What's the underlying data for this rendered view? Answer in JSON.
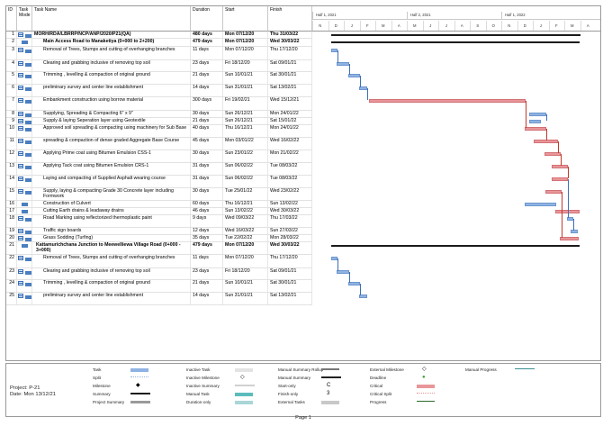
{
  "columns": {
    "id": "ID",
    "task_mode": "Task Mode",
    "task_name": "Task Name",
    "duration": "Duration",
    "start": "Start",
    "finish": "Finish"
  },
  "timeline": {
    "halves": [
      "Half 1, 2021",
      "Half 2, 2021",
      "Half 1, 2022"
    ],
    "months": [
      "N",
      "D",
      "J",
      "F",
      "M",
      "A",
      "M",
      "J",
      "J",
      "A",
      "S",
      "O",
      "N",
      "D",
      "J",
      "F",
      "M",
      "A"
    ]
  },
  "tasks": [
    {
      "id": "1",
      "name": "MORH/RDA/LBRRP/NCP/ANP/2020/P21(QA)",
      "duration": "480 days",
      "start": "Mon 07/12/20",
      "finish": "Thu 31/03/22",
      "bold": true,
      "info": true
    },
    {
      "id": "2",
      "name": "Main Access Road to Manaketiya (0+000 to 2+200)",
      "duration": "479 days",
      "start": "Mon 07/12/20",
      "finish": "Wed 30/03/22",
      "bold": true,
      "info": false
    },
    {
      "id": "3",
      "name": "Removal of Trees, Stumps and cutting of overhanging branches",
      "duration": "11 days",
      "start": "Mon 07/12/20",
      "finish": "Thu 17/12/20",
      "bold": false,
      "info": true
    },
    {
      "id": "4",
      "name": "Clearing and grabbing inclusive of removing top soil",
      "duration": "23 days",
      "start": "Fri 18/12/20",
      "finish": "Sat 09/01/21",
      "bold": false,
      "info": true
    },
    {
      "id": "5",
      "name": "Trimming , levelling & compaction of original ground",
      "duration": "21 days",
      "start": "Sun 10/01/21",
      "finish": "Sat 30/01/21",
      "bold": false,
      "info": true
    },
    {
      "id": "6",
      "name": "preliminary survey and center line establishment",
      "duration": "14 days",
      "start": "Sun 31/01/21",
      "finish": "Sat 13/02/21",
      "bold": false,
      "info": true
    },
    {
      "id": "7",
      "name": "Embankment construction using borrow material",
      "duration": "300 days",
      "start": "Fri 19/02/21",
      "finish": "Wed 15/12/21",
      "bold": false,
      "info": true
    },
    {
      "id": "8",
      "name": "Supplying, Spreading & Compacting 6\" x 9\"",
      "duration": "30 days",
      "start": "Sun 26/12/21",
      "finish": "Mon 24/01/22",
      "bold": false,
      "info": true
    },
    {
      "id": "9",
      "name": "Supply & laying Seperation layer using Geotextile",
      "duration": "21 days",
      "start": "Sun 26/12/21",
      "finish": "Sat 15/01/22",
      "bold": false,
      "info": true
    },
    {
      "id": "10",
      "name": "Approved soil spreading & compacting using machinery for Sub Base",
      "duration": "40 days",
      "start": "Thu 16/12/21",
      "finish": "Mon 24/01/22",
      "bold": false,
      "info": true
    },
    {
      "id": "11",
      "name": "spreading & compaction of dense graded Aggregate Base Course",
      "duration": "45 days",
      "start": "Mon 03/01/22",
      "finish": "Wed 16/02/22",
      "bold": false,
      "info": true
    },
    {
      "id": "12",
      "name": "Applying Prime coat using Bitumen Emulsion CSS-1",
      "duration": "30 days",
      "start": "Sun 23/01/22",
      "finish": "Mon 21/02/22",
      "bold": false,
      "info": true
    },
    {
      "id": "13",
      "name": "Applying Tack coat using Bitumen Emulsion CRS-1",
      "duration": "31 days",
      "start": "Sun 06/02/22",
      "finish": "Tue 08/03/22",
      "bold": false,
      "info": true
    },
    {
      "id": "14",
      "name": "Laying and compacting of Supplied Asphalt wearing course",
      "duration": "31 days",
      "start": "Sun 06/02/22",
      "finish": "Tue 08/03/22",
      "bold": false,
      "info": true
    },
    {
      "id": "15",
      "name": "Supply, laying & compacting Grade 30 Concrete layer including Formwork",
      "duration": "30 days",
      "start": "Tue 25/01/22",
      "finish": "Wed 23/02/22",
      "bold": false,
      "info": true
    },
    {
      "id": "16",
      "name": "Construction of Culvert",
      "duration": "60 days",
      "start": "Thu 16/12/21",
      "finish": "Sun 13/02/22",
      "bold": false,
      "info": false
    },
    {
      "id": "17",
      "name": "Cutting Earth drains & leadaway drains",
      "duration": "46 days",
      "start": "Sun 13/02/22",
      "finish": "Wed 30/03/22",
      "bold": false,
      "info": false
    },
    {
      "id": "18",
      "name": "Road Marking  using reflectorized thermoplastic paint",
      "duration": "9 days",
      "start": "Wed 09/03/22",
      "finish": "Thu 17/03/22",
      "bold": false,
      "info": true
    },
    {
      "id": "19",
      "name": "Traffic sign boards",
      "duration": "12 days",
      "start": "Wed 16/03/22",
      "finish": "Sun 27/03/22",
      "bold": false,
      "info": true
    },
    {
      "id": "20",
      "name": "Grass Sodding (Turfing)",
      "duration": "35 days",
      "start": "Tue 22/02/22",
      "finish": "Mon 28/03/22",
      "bold": false,
      "info": true
    },
    {
      "id": "21",
      "name": "Kattamurichchana Junction to Meewelliewa Village Road (0+000 - 3+000)",
      "duration": "479 days",
      "start": "Mon 07/12/20",
      "finish": "Wed 30/03/22",
      "bold": true,
      "info": false
    },
    {
      "id": "22",
      "name": "Removal of Trees, Stumps and cutting of overhanging branches",
      "duration": "11 days",
      "start": "Mon 07/12/20",
      "finish": "Thu 17/12/20",
      "bold": false,
      "info": true
    },
    {
      "id": "23",
      "name": "Clearing and grabbing inclusive of removing top soil",
      "duration": "23 days",
      "start": "Fri 18/12/20",
      "finish": "Sat 09/01/21",
      "bold": false,
      "info": true
    },
    {
      "id": "24",
      "name": "Trimming , levelling & compaction of original ground",
      "duration": "21 days",
      "start": "Sun 10/01/21",
      "finish": "Sat 30/01/21",
      "bold": false,
      "info": true
    },
    {
      "id": "25",
      "name": "preliminary survey and center line establishment",
      "duration": "14 days",
      "start": "Sun 31/01/21",
      "finish": "Sat 13/02/21",
      "bold": false,
      "info": true
    }
  ],
  "legend": {
    "col1": [
      "Task",
      "Split",
      "Milestone",
      "Summary",
      "Project Summary"
    ],
    "col2": [
      "Inactive Task",
      "Inactive Milestone",
      "Inactive Summary",
      "Manual Task",
      "Duration-only"
    ],
    "col3": [
      "Manual Summary Rollup",
      "Manual Summary",
      "Start-only",
      "Finish-only",
      "External Tasks"
    ],
    "col4": [
      "External Milestone",
      "Deadline",
      "Critical",
      "Critical Split",
      "Progress"
    ],
    "col5": [
      "Manual Progress"
    ],
    "start_only_glyph": "C",
    "finish_only_glyph": "3",
    "milestone_glyph": "◆",
    "ext_milestone_glyph": "◇",
    "deadline_glyph": "●"
  },
  "project": {
    "project_line": "Project: P-21",
    "date_line": "Date: Mon 13/12/21"
  },
  "footer": "Page 1",
  "colors": {
    "task": "#8fb3e3",
    "critical": "#e8969a",
    "link": "#3c6fb8",
    "critical_link": "#c0392b",
    "summary": "#1b1b1b"
  }
}
